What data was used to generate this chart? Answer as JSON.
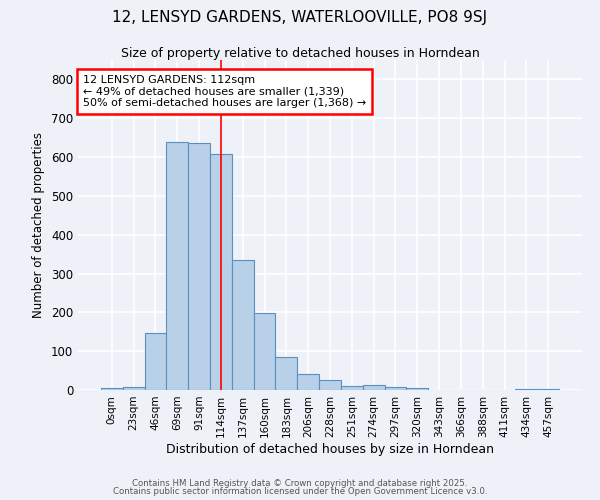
{
  "title1": "12, LENSYD GARDENS, WATERLOOVILLE, PO8 9SJ",
  "title2": "Size of property relative to detached houses in Horndean",
  "xlabel": "Distribution of detached houses by size in Horndean",
  "ylabel": "Number of detached properties",
  "bin_labels": [
    "0sqm",
    "23sqm",
    "46sqm",
    "69sqm",
    "91sqm",
    "114sqm",
    "137sqm",
    "160sqm",
    "183sqm",
    "206sqm",
    "228sqm",
    "251sqm",
    "274sqm",
    "297sqm",
    "320sqm",
    "343sqm",
    "366sqm",
    "388sqm",
    "411sqm",
    "434sqm",
    "457sqm"
  ],
  "bar_values": [
    5,
    8,
    148,
    640,
    637,
    608,
    335,
    198,
    85,
    42,
    25,
    11,
    14,
    8,
    5,
    0,
    0,
    0,
    0,
    2,
    3
  ],
  "bar_color": "#b8d0e8",
  "bar_edge_color": "#5a8fc0",
  "vline_x": 5,
  "vline_color": "red",
  "annotation_text": "12 LENSYD GARDENS: 112sqm\n← 49% of detached houses are smaller (1,339)\n50% of semi-detached houses are larger (1,368) →",
  "annotation_box_color": "white",
  "annotation_box_edge": "red",
  "footer1": "Contains HM Land Registry data © Crown copyright and database right 2025.",
  "footer2": "Contains public sector information licensed under the Open Government Licence v3.0.",
  "ylim": [
    0,
    850
  ],
  "yticks": [
    0,
    100,
    200,
    300,
    400,
    500,
    600,
    700,
    800
  ],
  "background_color": "#eef2f8",
  "grid_color": "white",
  "title1_fontsize": 11,
  "title2_fontsize": 9
}
